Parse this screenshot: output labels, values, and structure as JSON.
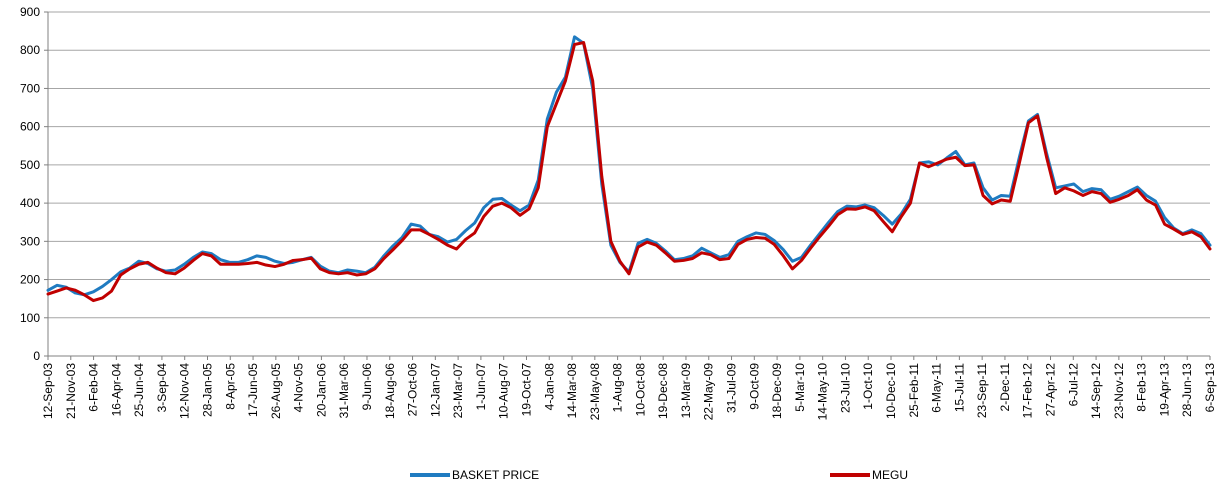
{
  "chart_data": {
    "type": "line",
    "title": "",
    "xlabel": "",
    "ylabel": "",
    "ylim": [
      0,
      900
    ],
    "yticks": [
      0,
      100,
      200,
      300,
      400,
      500,
      600,
      700,
      800,
      900
    ],
    "grid": "horizontal",
    "legend": "bottom",
    "x_tick_labels": [
      "12-Sep-03",
      "21-Nov-03",
      "6-Feb-04",
      "16-Apr-04",
      "25-Jun-04",
      "3-Sep-04",
      "12-Nov-04",
      "28-Jan-05",
      "8-Apr-05",
      "17-Jun-05",
      "26-Aug-05",
      "4-Nov-05",
      "20-Jan-06",
      "31-Mar-06",
      "9-Jun-06",
      "18-Aug-06",
      "27-Oct-06",
      "12-Jan-07",
      "23-Mar-07",
      "1-Jun-07",
      "10-Aug-07",
      "19-Oct-07",
      "4-Jan-08",
      "14-Mar-08",
      "23-May-08",
      "1-Aug-08",
      "10-Oct-08",
      "19-Dec-08",
      "13-Mar-09",
      "22-May-09",
      "31-Jul-09",
      "9-Oct-09",
      "18-Dec-09",
      "5-Mar-10",
      "14-May-10",
      "23-Jul-10",
      "1-Oct-10",
      "10-Dec-10",
      "25-Feb-11",
      "6-May-11",
      "15-Jul-11",
      "23-Sep-11",
      "2-Dec-11",
      "17-Feb-12",
      "27-Apr-12",
      "6-Jul-12",
      "14-Sep-12",
      "23-Nov-12",
      "8-Feb-13",
      "19-Apr-13",
      "28-Jun-13",
      "6-Sep-13"
    ],
    "series": [
      {
        "name": "BASKET PRICE",
        "color": "#1f7bc1",
        "values": [
          [
            0,
            172
          ],
          [
            1,
            185
          ],
          [
            2,
            180
          ],
          [
            3,
            165
          ],
          [
            4,
            160
          ],
          [
            5,
            168
          ],
          [
            6,
            182
          ],
          [
            7,
            200
          ],
          [
            8,
            220
          ],
          [
            9,
            230
          ],
          [
            10,
            248
          ],
          [
            11,
            242
          ],
          [
            12,
            228
          ],
          [
            13,
            222
          ],
          [
            14,
            225
          ],
          [
            15,
            240
          ],
          [
            16,
            258
          ],
          [
            17,
            272
          ],
          [
            18,
            268
          ],
          [
            19,
            252
          ],
          [
            20,
            245
          ],
          [
            21,
            245
          ],
          [
            22,
            252
          ],
          [
            23,
            262
          ],
          [
            24,
            258
          ],
          [
            25,
            248
          ],
          [
            26,
            242
          ],
          [
            27,
            245
          ],
          [
            28,
            252
          ],
          [
            29,
            258
          ],
          [
            30,
            235
          ],
          [
            31,
            222
          ],
          [
            32,
            218
          ],
          [
            33,
            225
          ],
          [
            34,
            222
          ],
          [
            35,
            218
          ],
          [
            36,
            232
          ],
          [
            37,
            262
          ],
          [
            38,
            288
          ],
          [
            39,
            310
          ],
          [
            40,
            345
          ],
          [
            41,
            340
          ],
          [
            42,
            318
          ],
          [
            43,
            312
          ],
          [
            44,
            298
          ],
          [
            45,
            305
          ],
          [
            46,
            328
          ],
          [
            47,
            348
          ],
          [
            48,
            388
          ],
          [
            49,
            410
          ],
          [
            50,
            412
          ],
          [
            51,
            395
          ],
          [
            52,
            380
          ],
          [
            53,
            395
          ],
          [
            54,
            460
          ],
          [
            55,
            620
          ],
          [
            56,
            690
          ],
          [
            57,
            730
          ],
          [
            58,
            835
          ],
          [
            59,
            818
          ],
          [
            60,
            700
          ],
          [
            61,
            450
          ],
          [
            62,
            290
          ],
          [
            63,
            245
          ],
          [
            64,
            220
          ],
          [
            65,
            295
          ],
          [
            66,
            305
          ],
          [
            67,
            295
          ],
          [
            68,
            275
          ],
          [
            69,
            252
          ],
          [
            70,
            255
          ],
          [
            71,
            262
          ],
          [
            72,
            282
          ],
          [
            73,
            270
          ],
          [
            74,
            258
          ],
          [
            75,
            265
          ],
          [
            76,
            300
          ],
          [
            77,
            312
          ],
          [
            78,
            322
          ],
          [
            79,
            318
          ],
          [
            80,
            302
          ],
          [
            81,
            278
          ],
          [
            82,
            248
          ],
          [
            83,
            258
          ],
          [
            84,
            290
          ],
          [
            85,
            320
          ],
          [
            86,
            350
          ],
          [
            87,
            378
          ],
          [
            88,
            392
          ],
          [
            89,
            390
          ],
          [
            90,
            395
          ],
          [
            91,
            388
          ],
          [
            92,
            368
          ],
          [
            93,
            345
          ],
          [
            94,
            372
          ],
          [
            95,
            410
          ],
          [
            96,
            505
          ],
          [
            97,
            508
          ],
          [
            98,
            500
          ],
          [
            99,
            518
          ],
          [
            100,
            535
          ],
          [
            101,
            500
          ],
          [
            102,
            505
          ],
          [
            103,
            440
          ],
          [
            104,
            408
          ],
          [
            105,
            420
          ],
          [
            106,
            418
          ],
          [
            107,
            520
          ],
          [
            108,
            615
          ],
          [
            109,
            632
          ],
          [
            110,
            530
          ],
          [
            111,
            440
          ],
          [
            112,
            445
          ],
          [
            113,
            450
          ],
          [
            114,
            430
          ],
          [
            115,
            438
          ],
          [
            116,
            435
          ],
          [
            117,
            410
          ],
          [
            118,
            418
          ],
          [
            119,
            430
          ],
          [
            120,
            442
          ],
          [
            121,
            420
          ],
          [
            122,
            405
          ],
          [
            123,
            362
          ],
          [
            124,
            335
          ],
          [
            125,
            320
          ],
          [
            126,
            330
          ],
          [
            127,
            320
          ],
          [
            128,
            290
          ]
        ]
      },
      {
        "name": "MEGU",
        "color": "#c00000",
        "values": [
          [
            0,
            162
          ],
          [
            1,
            170
          ],
          [
            2,
            178
          ],
          [
            3,
            172
          ],
          [
            4,
            160
          ],
          [
            5,
            145
          ],
          [
            6,
            152
          ],
          [
            7,
            170
          ],
          [
            8,
            212
          ],
          [
            9,
            228
          ],
          [
            10,
            240
          ],
          [
            11,
            245
          ],
          [
            12,
            230
          ],
          [
            13,
            218
          ],
          [
            14,
            215
          ],
          [
            15,
            230
          ],
          [
            16,
            250
          ],
          [
            17,
            268
          ],
          [
            18,
            262
          ],
          [
            19,
            240
          ],
          [
            20,
            240
          ],
          [
            21,
            240
          ],
          [
            22,
            242
          ],
          [
            23,
            245
          ],
          [
            24,
            238
          ],
          [
            25,
            234
          ],
          [
            26,
            240
          ],
          [
            27,
            250
          ],
          [
            28,
            252
          ],
          [
            29,
            256
          ],
          [
            30,
            228
          ],
          [
            31,
            218
          ],
          [
            32,
            215
          ],
          [
            33,
            218
          ],
          [
            34,
            212
          ],
          [
            35,
            215
          ],
          [
            36,
            228
          ],
          [
            37,
            255
          ],
          [
            38,
            278
          ],
          [
            39,
            302
          ],
          [
            40,
            330
          ],
          [
            41,
            330
          ],
          [
            42,
            318
          ],
          [
            43,
            305
          ],
          [
            44,
            290
          ],
          [
            45,
            280
          ],
          [
            46,
            305
          ],
          [
            47,
            322
          ],
          [
            48,
            365
          ],
          [
            49,
            392
          ],
          [
            50,
            400
          ],
          [
            51,
            388
          ],
          [
            52,
            368
          ],
          [
            53,
            385
          ],
          [
            54,
            440
          ],
          [
            55,
            600
          ],
          [
            56,
            660
          ],
          [
            57,
            720
          ],
          [
            58,
            815
          ],
          [
            59,
            820
          ],
          [
            60,
            720
          ],
          [
            61,
            470
          ],
          [
            62,
            300
          ],
          [
            63,
            248
          ],
          [
            64,
            215
          ],
          [
            65,
            285
          ],
          [
            66,
            298
          ],
          [
            67,
            290
          ],
          [
            68,
            270
          ],
          [
            69,
            248
          ],
          [
            70,
            250
          ],
          [
            71,
            255
          ],
          [
            72,
            270
          ],
          [
            73,
            265
          ],
          [
            74,
            252
          ],
          [
            75,
            255
          ],
          [
            76,
            292
          ],
          [
            77,
            305
          ],
          [
            78,
            310
          ],
          [
            79,
            308
          ],
          [
            80,
            292
          ],
          [
            81,
            262
          ],
          [
            82,
            228
          ],
          [
            83,
            250
          ],
          [
            84,
            282
          ],
          [
            85,
            312
          ],
          [
            86,
            340
          ],
          [
            87,
            370
          ],
          [
            88,
            385
          ],
          [
            89,
            384
          ],
          [
            90,
            390
          ],
          [
            91,
            380
          ],
          [
            92,
            352
          ],
          [
            93,
            325
          ],
          [
            94,
            365
          ],
          [
            95,
            400
          ],
          [
            96,
            505
          ],
          [
            97,
            495
          ],
          [
            98,
            505
          ],
          [
            99,
            515
          ],
          [
            100,
            520
          ],
          [
            101,
            498
          ],
          [
            102,
            500
          ],
          [
            103,
            420
          ],
          [
            104,
            398
          ],
          [
            105,
            408
          ],
          [
            106,
            405
          ],
          [
            107,
            505
          ],
          [
            108,
            610
          ],
          [
            109,
            628
          ],
          [
            110,
            520
          ],
          [
            111,
            425
          ],
          [
            112,
            440
          ],
          [
            113,
            432
          ],
          [
            114,
            420
          ],
          [
            115,
            430
          ],
          [
            116,
            425
          ],
          [
            117,
            402
          ],
          [
            118,
            410
          ],
          [
            119,
            420
          ],
          [
            120,
            435
          ],
          [
            121,
            408
          ],
          [
            122,
            395
          ],
          [
            123,
            345
          ],
          [
            124,
            332
          ],
          [
            125,
            318
          ],
          [
            126,
            325
          ],
          [
            127,
            312
          ],
          [
            128,
            280
          ]
        ]
      }
    ]
  }
}
